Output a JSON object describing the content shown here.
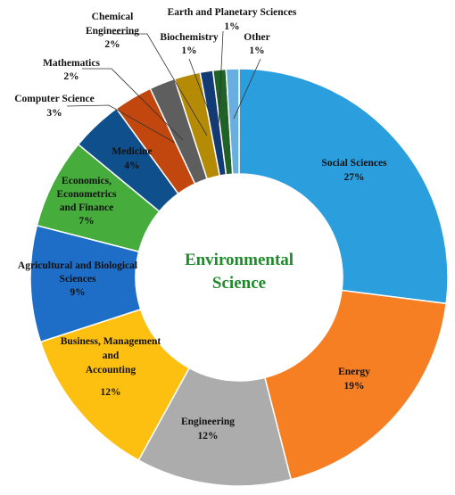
{
  "chart_data": {
    "type": "pie",
    "subtype": "donut",
    "title": "Environmental Science",
    "colors_matter": true,
    "slices": [
      {
        "label": "Social Sciences",
        "pct_label": "27%",
        "value": 27,
        "color": "#2b9ede"
      },
      {
        "label": "Energy",
        "pct_label": "19%",
        "value": 19,
        "color": "#f57f22"
      },
      {
        "label": "Engineering",
        "pct_label": "12%",
        "value": 12,
        "color": "#acacac"
      },
      {
        "label": "Business, Management and Accounting",
        "pct_label": "12%",
        "value": 12,
        "color": "#fdc010"
      },
      {
        "label": "Agricultural and Biological Sciences",
        "pct_label": "9%",
        "value": 9,
        "color": "#1e6ec8"
      },
      {
        "label": "Economics, Econometrics and Finance",
        "pct_label": "7%",
        "value": 7,
        "color": "#46ad3c"
      },
      {
        "label": "Medicine",
        "pct_label": "4%",
        "value": 4,
        "color": "#0f4f8c"
      },
      {
        "label": "Computer Science",
        "pct_label": "3%",
        "value": 3,
        "color": "#c1470e"
      },
      {
        "label": "Mathematics",
        "pct_label": "2%",
        "value": 2,
        "color": "#5e5e5e"
      },
      {
        "label": "Chemical Engineering",
        "pct_label": "2%",
        "value": 2,
        "color": "#b58a05"
      },
      {
        "label": "Biochemistry",
        "pct_label": "1%",
        "value": 1,
        "color": "#123a74"
      },
      {
        "label": "Earth and Planetary Sciences",
        "pct_label": "1%",
        "value": 1,
        "color": "#1f6126"
      },
      {
        "label": "Other",
        "pct_label": "1%",
        "value": 1,
        "color": "#69aee0"
      }
    ]
  }
}
